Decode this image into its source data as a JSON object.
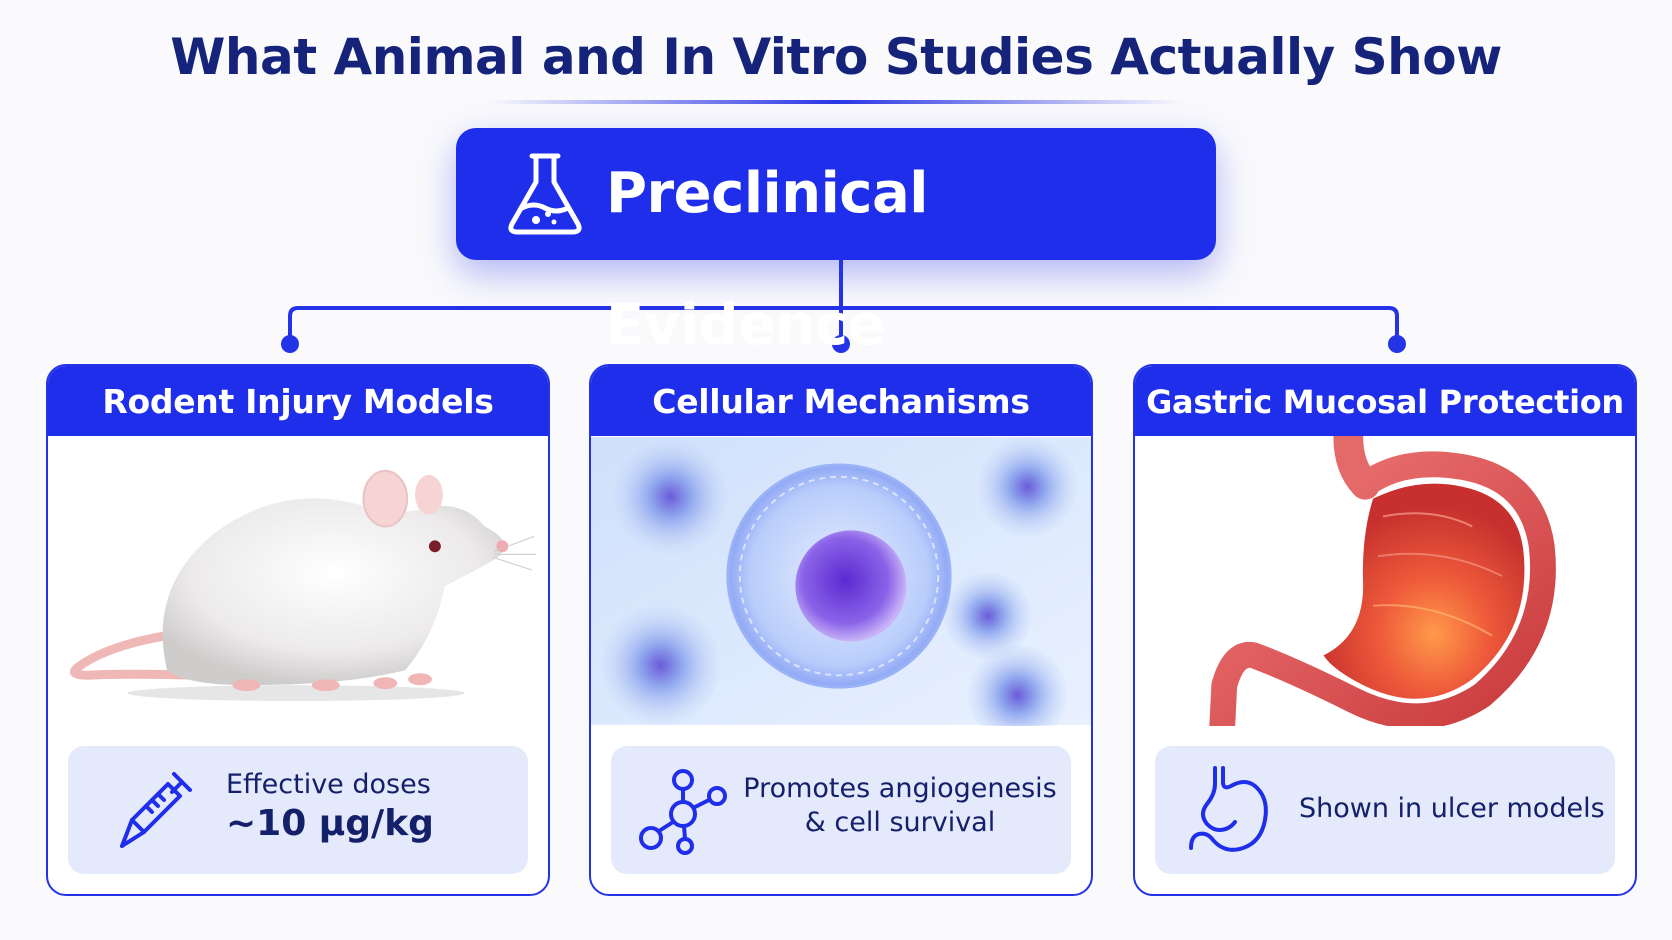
{
  "title": "What Animal and In Vitro Studies Actually Show",
  "root": {
    "label": "Preclinical Evidence",
    "icon": "flask-icon"
  },
  "colors": {
    "primary": "#1e2eea",
    "title": "#15247a",
    "info_bg": "#e4e9fb"
  },
  "cards": [
    {
      "header": "Rodent Injury Models",
      "image": "white-rat-image",
      "icon": "syringe-icon",
      "info_line1": "Effective doses",
      "info_line2": "~10 μg/kg"
    },
    {
      "header": "Cellular Mechanisms",
      "image": "cell-image",
      "icon": "molecule-icon",
      "info_line1": "Promotes angiogenesis",
      "info_line2": "& cell survival"
    },
    {
      "header": "Gastric Mucosal Protection",
      "image": "stomach-image",
      "icon": "stomach-icon",
      "info_line1": "Shown in ulcer models"
    }
  ]
}
